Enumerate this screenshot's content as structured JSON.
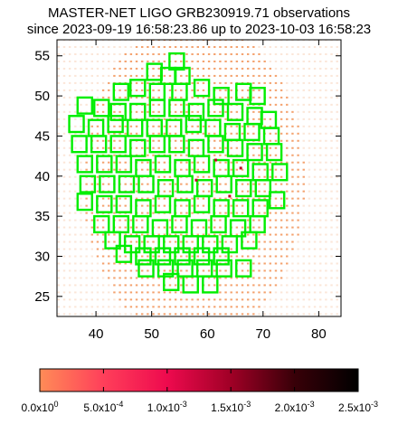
{
  "title_line1": "MASTER-NET LIGO GRB230919.71 observations",
  "title_line2": "since 2023-09-19 16:58:23.86 up to 2023-10-03 16:58:23",
  "chart_data": {
    "type": "scatter",
    "title": "MASTER-NET LIGO GRB230919.71 observations since 2023-09-19 16:58:23.86 up to 2023-10-03 16:58:23",
    "xlabel": "",
    "ylabel": "",
    "xlim": [
      33,
      84
    ],
    "ylim": [
      22.5,
      57
    ],
    "x_ticks": [
      40,
      50,
      60,
      70,
      80
    ],
    "y_ticks": [
      25,
      30,
      35,
      40,
      45,
      50,
      55
    ],
    "grid": false,
    "probability_map": {
      "description_color": "light orange dots form a circular probability region",
      "center": [
        57.5,
        39.5
      ],
      "radius_deg": 20,
      "faint_background": true
    },
    "fields": {
      "color": "#00ee00",
      "series": [
        {
          "x": 54.5,
          "y": 54.3
        },
        {
          "x": 50.5,
          "y": 53.0
        },
        {
          "x": 53.0,
          "y": 52.5
        },
        {
          "x": 55.5,
          "y": 52.5
        },
        {
          "x": 44.5,
          "y": 50.5
        },
        {
          "x": 47.5,
          "y": 51.0
        },
        {
          "x": 51.0,
          "y": 50.5
        },
        {
          "x": 55.0,
          "y": 50.5
        },
        {
          "x": 59.0,
          "y": 51.0
        },
        {
          "x": 62.5,
          "y": 50.0
        },
        {
          "x": 66.5,
          "y": 50.5
        },
        {
          "x": 69.0,
          "y": 50.0
        },
        {
          "x": 38.0,
          "y": 48.8
        },
        {
          "x": 41.0,
          "y": 48.5
        },
        {
          "x": 44.0,
          "y": 48.0
        },
        {
          "x": 47.5,
          "y": 48.0
        },
        {
          "x": 51.0,
          "y": 48.5
        },
        {
          "x": 54.5,
          "y": 48.5
        },
        {
          "x": 58.0,
          "y": 48.0
        },
        {
          "x": 61.5,
          "y": 48.5
        },
        {
          "x": 65.0,
          "y": 48.0
        },
        {
          "x": 68.5,
          "y": 47.5
        },
        {
          "x": 71.0,
          "y": 47.0
        },
        {
          "x": 36.5,
          "y": 46.5
        },
        {
          "x": 40.0,
          "y": 46.0
        },
        {
          "x": 43.5,
          "y": 46.5
        },
        {
          "x": 47.0,
          "y": 46.0
        },
        {
          "x": 50.5,
          "y": 46.0
        },
        {
          "x": 54.0,
          "y": 46.0
        },
        {
          "x": 57.5,
          "y": 46.5
        },
        {
          "x": 61.0,
          "y": 46.0
        },
        {
          "x": 64.5,
          "y": 45.5
        },
        {
          "x": 68.0,
          "y": 45.5
        },
        {
          "x": 71.5,
          "y": 45.0
        },
        {
          "x": 37.0,
          "y": 44.0
        },
        {
          "x": 40.5,
          "y": 44.0
        },
        {
          "x": 44.0,
          "y": 44.0
        },
        {
          "x": 47.5,
          "y": 43.5
        },
        {
          "x": 51.0,
          "y": 44.0
        },
        {
          "x": 54.5,
          "y": 44.0
        },
        {
          "x": 58.0,
          "y": 43.5
        },
        {
          "x": 61.5,
          "y": 44.0
        },
        {
          "x": 65.0,
          "y": 43.5
        },
        {
          "x": 68.5,
          "y": 43.0
        },
        {
          "x": 72.0,
          "y": 43.0
        },
        {
          "x": 38.0,
          "y": 41.5
        },
        {
          "x": 41.5,
          "y": 41.5
        },
        {
          "x": 45.0,
          "y": 41.5
        },
        {
          "x": 48.5,
          "y": 41.0
        },
        {
          "x": 52.0,
          "y": 41.5
        },
        {
          "x": 55.5,
          "y": 41.0
        },
        {
          "x": 59.0,
          "y": 41.5
        },
        {
          "x": 62.5,
          "y": 41.0
        },
        {
          "x": 66.0,
          "y": 41.0
        },
        {
          "x": 69.5,
          "y": 40.5
        },
        {
          "x": 73.0,
          "y": 40.5
        },
        {
          "x": 38.5,
          "y": 39.0
        },
        {
          "x": 42.0,
          "y": 39.0
        },
        {
          "x": 45.5,
          "y": 39.0
        },
        {
          "x": 49.0,
          "y": 39.0
        },
        {
          "x": 52.5,
          "y": 38.5
        },
        {
          "x": 56.0,
          "y": 39.0
        },
        {
          "x": 59.5,
          "y": 38.5
        },
        {
          "x": 63.0,
          "y": 39.0
        },
        {
          "x": 66.5,
          "y": 38.5
        },
        {
          "x": 70.0,
          "y": 38.5
        },
        {
          "x": 38.0,
          "y": 36.8
        },
        {
          "x": 41.5,
          "y": 36.5
        },
        {
          "x": 45.0,
          "y": 36.5
        },
        {
          "x": 48.5,
          "y": 36.0
        },
        {
          "x": 52.0,
          "y": 36.5
        },
        {
          "x": 55.5,
          "y": 36.0
        },
        {
          "x": 59.0,
          "y": 36.5
        },
        {
          "x": 62.5,
          "y": 36.0
        },
        {
          "x": 66.0,
          "y": 36.0
        },
        {
          "x": 69.5,
          "y": 36.0
        },
        {
          "x": 72.5,
          "y": 37.0
        },
        {
          "x": 41.0,
          "y": 34.0
        },
        {
          "x": 44.5,
          "y": 34.0
        },
        {
          "x": 48.0,
          "y": 34.0
        },
        {
          "x": 51.5,
          "y": 33.5
        },
        {
          "x": 55.0,
          "y": 34.0
        },
        {
          "x": 58.5,
          "y": 33.5
        },
        {
          "x": 62.0,
          "y": 34.0
        },
        {
          "x": 65.5,
          "y": 33.5
        },
        {
          "x": 69.0,
          "y": 34.0
        },
        {
          "x": 43.0,
          "y": 32.0
        },
        {
          "x": 46.5,
          "y": 31.5
        },
        {
          "x": 50.0,
          "y": 31.5
        },
        {
          "x": 53.5,
          "y": 31.5
        },
        {
          "x": 57.0,
          "y": 31.5
        },
        {
          "x": 60.5,
          "y": 31.5
        },
        {
          "x": 64.0,
          "y": 31.5
        },
        {
          "x": 67.5,
          "y": 32.0
        },
        {
          "x": 45.0,
          "y": 30.3
        },
        {
          "x": 48.5,
          "y": 30.0
        },
        {
          "x": 52.0,
          "y": 30.0
        },
        {
          "x": 55.5,
          "y": 30.0
        },
        {
          "x": 59.0,
          "y": 30.0
        },
        {
          "x": 62.5,
          "y": 30.0
        },
        {
          "x": 49.0,
          "y": 28.5
        },
        {
          "x": 52.5,
          "y": 28.5
        },
        {
          "x": 56.0,
          "y": 28.5
        },
        {
          "x": 59.5,
          "y": 28.5
        },
        {
          "x": 63.0,
          "y": 28.5
        },
        {
          "x": 66.5,
          "y": 28.5
        },
        {
          "x": 53.5,
          "y": 26.8
        },
        {
          "x": 57.0,
          "y": 26.5
        },
        {
          "x": 60.5,
          "y": 26.5
        }
      ],
      "hot_pixels": [
        {
          "x": 61.5,
          "y": 42.0
        },
        {
          "x": 64.0,
          "y": 37.5
        },
        {
          "x": 66.0,
          "y": 41.0
        },
        {
          "x": 58.0,
          "y": 39.5
        }
      ]
    },
    "colorbar": {
      "min": 0.0,
      "max": 0.0025,
      "labels_text": [
        "0.0x10",
        "5.0x10",
        "1.0x10",
        "1.5x10",
        "2.0x10",
        "2.5x10"
      ],
      "labels_exp": [
        "0",
        "-4",
        "-3",
        "-3",
        "-3",
        "-3"
      ],
      "stops": [
        "#ff8c57",
        "#ff3f5a",
        "#ee0a4e",
        "#a00026",
        "#380008",
        "#000000"
      ]
    }
  }
}
